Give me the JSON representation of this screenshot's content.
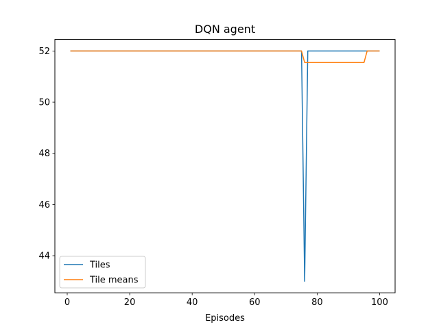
{
  "chart_data": {
    "type": "line",
    "title": "DQN agent",
    "xlabel": "Episodes",
    "ylabel": "",
    "xlim": [
      -3.95,
      104.95
    ],
    "ylim": [
      42.55,
      52.45
    ],
    "xticks": [
      0,
      20,
      40,
      60,
      80,
      100
    ],
    "yticks": [
      44,
      46,
      48,
      50,
      52
    ],
    "grid": false,
    "legend_position": "lower-left",
    "series": [
      {
        "name": "Tiles",
        "color": "#1f77b4",
        "x": [
          1,
          75,
          76,
          77,
          100
        ],
        "y": [
          52,
          52,
          43,
          52,
          52
        ]
      },
      {
        "name": "Tile means",
        "color": "#ff7f0e",
        "x": [
          1,
          75,
          76,
          95,
          96,
          100
        ],
        "y": [
          52,
          52,
          51.55,
          51.55,
          52,
          52
        ]
      }
    ]
  }
}
